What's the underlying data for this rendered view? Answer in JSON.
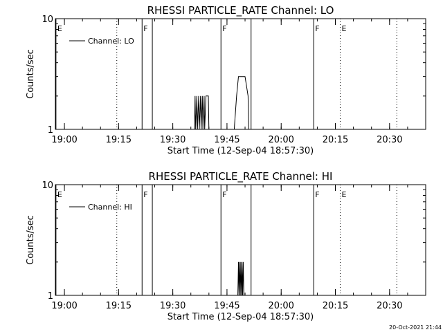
{
  "footer": {
    "timestamp": "20-Oct-2021 21:44"
  },
  "chart_data": [
    {
      "type": "line",
      "title": "RHESSI PARTICLE_RATE Channel: LO",
      "xlabel": "Start Time (12-Sep-04 18:57:30)",
      "ylabel": "Counts/sec",
      "y_scale": "log",
      "xlim": [
        "18:57:30",
        "20:40:00"
      ],
      "ylim": [
        1,
        10
      ],
      "x_tick_labels": [
        "19:00",
        "19:15",
        "19:30",
        "19:45",
        "20:00",
        "20:15",
        "20:30"
      ],
      "y_tick_labels": [
        "1",
        "10"
      ],
      "legend": {
        "position": "top-left",
        "entries": [
          "Channel: LO"
        ]
      },
      "markers": [
        {
          "time": "18:57:40",
          "label": "E",
          "style": "solid"
        },
        {
          "time": "19:14:30",
          "label": "",
          "style": "dotted"
        },
        {
          "time": "19:21:30",
          "label": "F",
          "style": "solid"
        },
        {
          "time": "19:24:20",
          "label": "",
          "style": "solid"
        },
        {
          "time": "19:43:20",
          "label": "F",
          "style": "solid"
        },
        {
          "time": "19:51:40",
          "label": "",
          "style": "solid"
        },
        {
          "time": "20:09:00",
          "label": "F",
          "style": "solid"
        },
        {
          "time": "20:16:20",
          "label": "E",
          "style": "dotted"
        },
        {
          "time": "20:32:00",
          "label": "",
          "style": "dotted"
        }
      ],
      "series": [
        {
          "name": "Channel: LO",
          "points": [
            [
              "19:36:00",
              1
            ],
            [
              "19:36:10",
              2
            ],
            [
              "19:36:20",
              1
            ],
            [
              "19:36:40",
              2
            ],
            [
              "19:36:50",
              1
            ],
            [
              "19:37:10",
              2
            ],
            [
              "19:37:20",
              1
            ],
            [
              "19:37:40",
              2
            ],
            [
              "19:37:50",
              1
            ],
            [
              "19:38:10",
              2
            ],
            [
              "19:38:20",
              1
            ],
            [
              "19:38:40",
              2
            ],
            [
              "19:38:50",
              1
            ],
            [
              "19:39:10",
              2
            ],
            [
              "19:39:50",
              2
            ],
            [
              "19:40:00",
              1
            ],
            [
              "19:47:00",
              1
            ],
            [
              "19:47:40",
              2
            ],
            [
              "19:48:10",
              3
            ],
            [
              "19:50:00",
              3
            ],
            [
              "19:50:50",
              2
            ],
            [
              "19:51:00",
              1
            ]
          ]
        }
      ]
    },
    {
      "type": "line",
      "title": "RHESSI PARTICLE_RATE Channel: HI",
      "xlabel": "Start Time (12-Sep-04 18:57:30)",
      "ylabel": "Counts/sec",
      "y_scale": "log",
      "xlim": [
        "18:57:30",
        "20:40:00"
      ],
      "ylim": [
        1,
        10
      ],
      "x_tick_labels": [
        "19:00",
        "19:15",
        "19:30",
        "19:45",
        "20:00",
        "20:15",
        "20:30"
      ],
      "y_tick_labels": [
        "1",
        "10"
      ],
      "legend": {
        "position": "top-left",
        "entries": [
          "Channel: HI"
        ]
      },
      "markers": [
        {
          "time": "18:57:40",
          "label": "E",
          "style": "solid"
        },
        {
          "time": "19:14:30",
          "label": "",
          "style": "dotted"
        },
        {
          "time": "19:21:30",
          "label": "F",
          "style": "solid"
        },
        {
          "time": "19:24:20",
          "label": "",
          "style": "solid"
        },
        {
          "time": "19:43:20",
          "label": "F",
          "style": "solid"
        },
        {
          "time": "19:51:40",
          "label": "",
          "style": "solid"
        },
        {
          "time": "20:09:00",
          "label": "F",
          "style": "solid"
        },
        {
          "time": "20:16:20",
          "label": "E",
          "style": "dotted"
        },
        {
          "time": "20:32:00",
          "label": "",
          "style": "dotted"
        }
      ],
      "series": [
        {
          "name": "Channel: HI",
          "points": [
            [
              "19:48:00",
              1
            ],
            [
              "19:48:10",
              2
            ],
            [
              "19:48:20",
              1
            ],
            [
              "19:48:30",
              2
            ],
            [
              "19:48:40",
              1
            ],
            [
              "19:48:50",
              2
            ],
            [
              "19:49:00",
              1
            ],
            [
              "19:49:10",
              2
            ],
            [
              "19:49:20",
              1
            ],
            [
              "19:49:30",
              2
            ],
            [
              "19:49:40",
              1
            ]
          ]
        }
      ]
    }
  ]
}
